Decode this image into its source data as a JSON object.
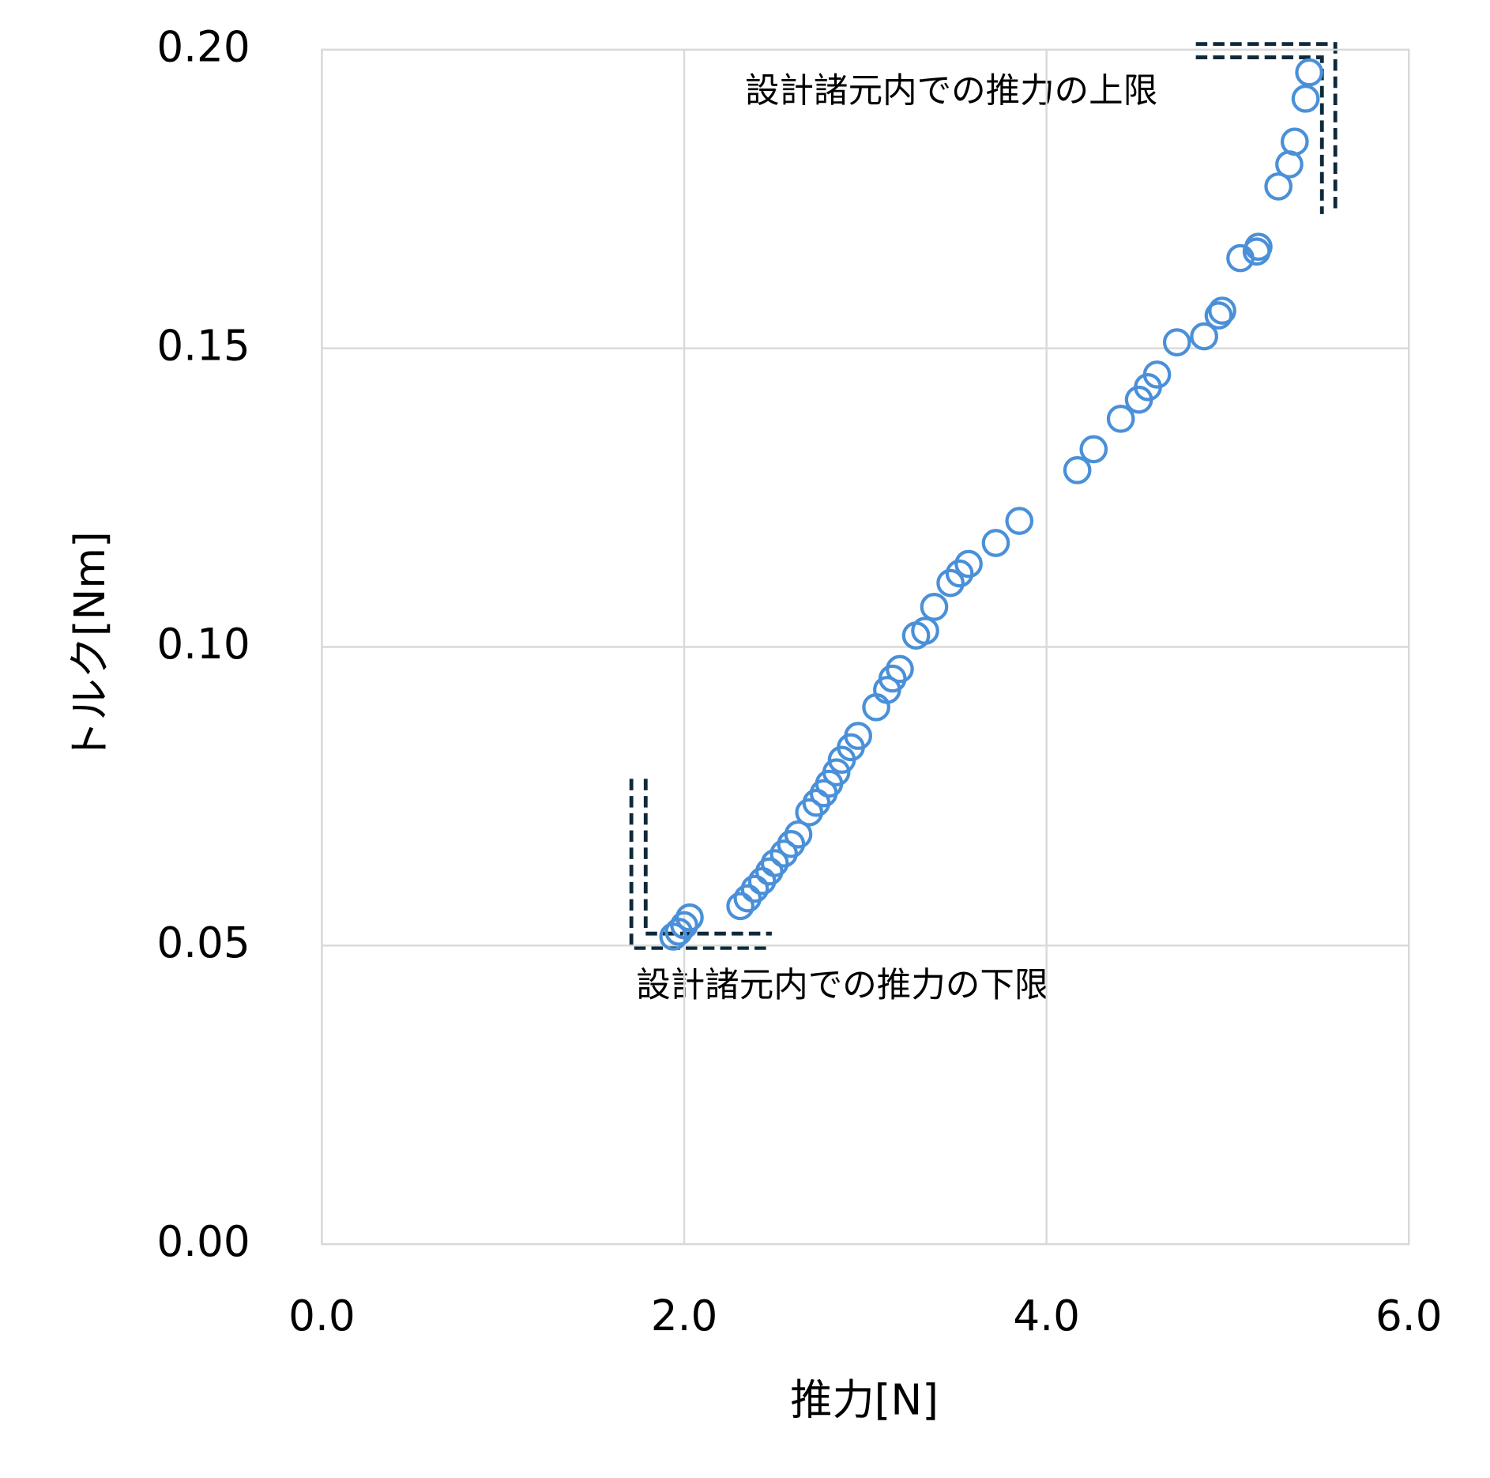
{
  "chart_data": {
    "type": "scatter",
    "x_label": "推力[N]",
    "y_label": "トルク[Nm]",
    "annotations": [
      "設計諸元内での推力の上限",
      "設計諸元内での推力の下限"
    ],
    "series": [
      {
        "color": "#4a90d9",
        "x": [
          1.94,
          1.97,
          2.0,
          2.03,
          2.31,
          2.35,
          2.39,
          2.43,
          2.47,
          2.5,
          2.55,
          2.59,
          2.63,
          2.69,
          2.73,
          2.77,
          2.8,
          2.84,
          2.87,
          2.92,
          2.96,
          3.06,
          3.12,
          3.15,
          3.19,
          3.28,
          3.33,
          3.38,
          3.47,
          3.52,
          3.57,
          3.72,
          3.85,
          4.17,
          4.26,
          4.41,
          4.51,
          4.56,
          4.61,
          4.72,
          4.87,
          4.95,
          4.97,
          5.07,
          5.16,
          5.17,
          5.28,
          5.34,
          5.37,
          5.43,
          5.45
        ],
        "values": [
          0.0515,
          0.0523,
          0.0534,
          0.0547,
          0.0566,
          0.0579,
          0.0595,
          0.0608,
          0.0624,
          0.0638,
          0.0654,
          0.067,
          0.0686,
          0.0723,
          0.0739,
          0.0755,
          0.0771,
          0.079,
          0.0811,
          0.0832,
          0.0851,
          0.0899,
          0.0928,
          0.0947,
          0.0963,
          0.1019,
          0.1027,
          0.1067,
          0.1107,
          0.1123,
          0.1139,
          0.1174,
          0.1211,
          0.1296,
          0.1331,
          0.1382,
          0.1414,
          0.1435,
          0.1456,
          0.151,
          0.152,
          0.1555,
          0.1563,
          0.1651,
          0.1662,
          0.167,
          0.1771,
          0.1808,
          0.1846,
          0.1918,
          0.1962
        ]
      }
    ],
    "xlim": [
      0,
      6
    ],
    "ylim": [
      0,
      0.2
    ],
    "xticks": [
      {
        "value": 0,
        "label": "0.0"
      },
      {
        "value": 2,
        "label": "2.0"
      },
      {
        "value": 4,
        "label": "4.0"
      },
      {
        "value": 6,
        "label": "6.0"
      }
    ],
    "yticks": [
      {
        "value": 0,
        "label": "0.00"
      },
      {
        "value": 0.05,
        "label": "0.05"
      },
      {
        "value": 0.1,
        "label": "0.10"
      },
      {
        "value": 0.15,
        "label": "0.15"
      },
      {
        "value": 0.2,
        "label": "0.20"
      }
    ],
    "grid": true
  }
}
